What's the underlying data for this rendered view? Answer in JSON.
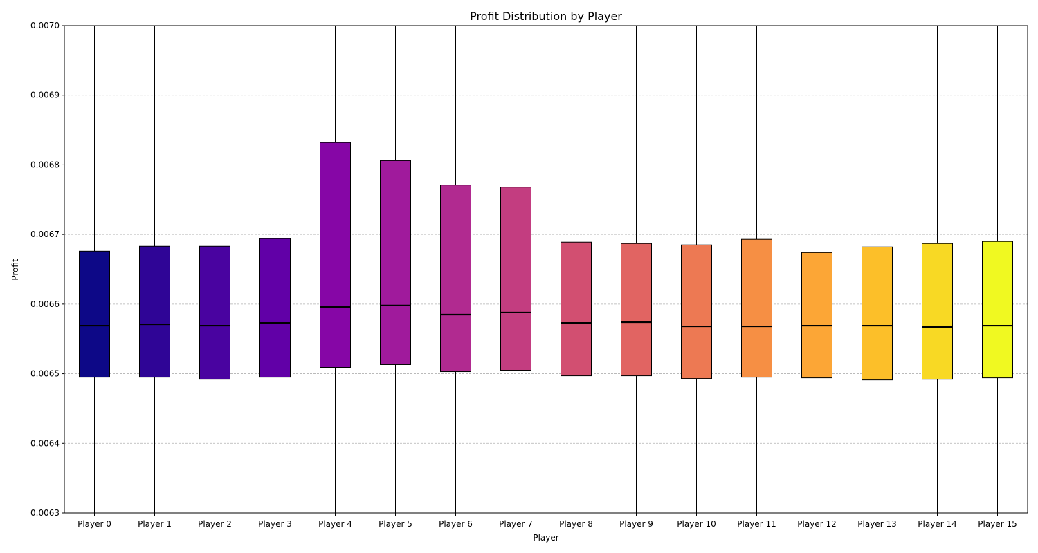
{
  "chart_data": {
    "type": "box",
    "title": "Profit Distribution by Player",
    "xlabel": "Player",
    "ylabel": "Profit",
    "ylim": [
      0.0063,
      0.007
    ],
    "yticks": [
      "0.0063",
      "0.0064",
      "0.0065",
      "0.0066",
      "0.0067",
      "0.0068",
      "0.0069",
      "0.0070"
    ],
    "grid": "y-dashed",
    "whiskers_extend_beyond_axis": true,
    "categories": [
      "Player 0",
      "Player 1",
      "Player 2",
      "Player 3",
      "Player 4",
      "Player 5",
      "Player 6",
      "Player 7",
      "Player 8",
      "Player 9",
      "Player 10",
      "Player 11",
      "Player 12",
      "Player 13",
      "Player 14",
      "Player 15"
    ],
    "boxes": [
      {
        "q1": 0.006495,
        "median": 0.006569,
        "q3": 0.006676,
        "color": "#0d0887"
      },
      {
        "q1": 0.006495,
        "median": 0.006571,
        "q3": 0.006683,
        "color": "#2f0596"
      },
      {
        "q1": 0.006492,
        "median": 0.006569,
        "q3": 0.006683,
        "color": "#4903a0"
      },
      {
        "q1": 0.006495,
        "median": 0.006573,
        "q3": 0.006694,
        "color": "#6100a7"
      },
      {
        "q1": 0.006509,
        "median": 0.006596,
        "q3": 0.006832,
        "color": "#8606a6"
      },
      {
        "q1": 0.006513,
        "median": 0.006598,
        "q3": 0.006806,
        "color": "#a01a9c"
      },
      {
        "q1": 0.006503,
        "median": 0.006585,
        "q3": 0.006771,
        "color": "#b12a90"
      },
      {
        "q1": 0.006505,
        "median": 0.006588,
        "q3": 0.006768,
        "color": "#c33d80"
      },
      {
        "q1": 0.006497,
        "median": 0.006573,
        "q3": 0.006689,
        "color": "#d24f71"
      },
      {
        "q1": 0.006497,
        "median": 0.006574,
        "q3": 0.006687,
        "color": "#e16462"
      },
      {
        "q1": 0.006493,
        "median": 0.006568,
        "q3": 0.006685,
        "color": "#ed7953"
      },
      {
        "q1": 0.006495,
        "median": 0.006568,
        "q3": 0.006693,
        "color": "#f68f44"
      },
      {
        "q1": 0.006494,
        "median": 0.006569,
        "q3": 0.006674,
        "color": "#fca636"
      },
      {
        "q1": 0.006491,
        "median": 0.006569,
        "q3": 0.006682,
        "color": "#fcbf29"
      },
      {
        "q1": 0.006492,
        "median": 0.006567,
        "q3": 0.006687,
        "color": "#f8d924"
      },
      {
        "q1": 0.006494,
        "median": 0.006569,
        "q3": 0.00669,
        "color": "#f0f921"
      }
    ]
  }
}
